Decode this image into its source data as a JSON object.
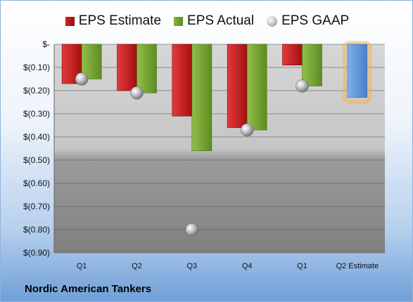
{
  "chart_data": {
    "type": "bar",
    "categories": [
      "Q1",
      "Q2",
      "Q3",
      "Q4",
      "Q1",
      "Q2 Estimate"
    ],
    "series": [
      {
        "name": "EPS Estimate",
        "values": [
          -0.17,
          -0.2,
          -0.31,
          -0.36,
          -0.09,
          null
        ],
        "color": "#c41a1a"
      },
      {
        "name": "EPS Actual",
        "values": [
          -0.15,
          -0.21,
          -0.46,
          -0.37,
          -0.18,
          null
        ],
        "color": "#77a636"
      },
      {
        "name": "EPS GAAP",
        "values": [
          -0.15,
          -0.21,
          -0.8,
          -0.37,
          -0.18,
          null
        ],
        "color": "#a9adb2"
      }
    ],
    "forecast": {
      "category": "Q2 Estimate",
      "value": -0.23,
      "color": "#5b8fd6",
      "glow_color": "#f6b24a"
    },
    "yticks": [
      0,
      -0.1,
      -0.2,
      -0.3,
      -0.4,
      -0.5,
      -0.6,
      -0.7,
      -0.8,
      -0.9
    ],
    "ytick_labels": [
      "$-",
      "$(0.10)",
      "$(0.20)",
      "$(0.30)",
      "$(0.40)",
      "$(0.50)",
      "$(0.60)",
      "$(0.70)",
      "$(0.80)",
      "$(0.90)"
    ],
    "ylim": [
      -0.9,
      0
    ],
    "grid": true,
    "legend_position": "top"
  },
  "legend": {
    "estimate": "EPS Estimate",
    "actual": "EPS Actual",
    "gaap": "EPS GAAP"
  },
  "footer": {
    "company": "Nordic American Tankers"
  }
}
